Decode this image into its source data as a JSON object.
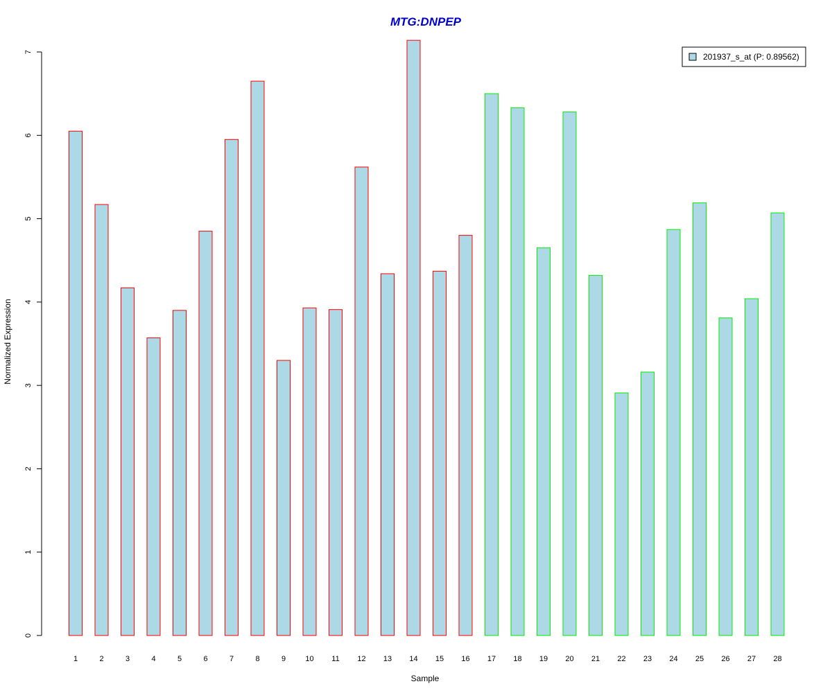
{
  "chart_data": {
    "type": "bar",
    "title": "MTG:DNPEP",
    "xlabel": "Sample",
    "ylabel": "Normalized Expression",
    "categories": [
      "1",
      "2",
      "3",
      "4",
      "5",
      "6",
      "7",
      "8",
      "9",
      "10",
      "11",
      "12",
      "13",
      "14",
      "15",
      "16",
      "17",
      "18",
      "19",
      "20",
      "21",
      "22",
      "23",
      "24",
      "25",
      "26",
      "27",
      "28"
    ],
    "series": [
      {
        "name": "201937_s_at (P: 0.89562)",
        "values": [
          6.05,
          5.17,
          4.17,
          3.57,
          3.9,
          4.85,
          5.95,
          6.65,
          3.3,
          3.93,
          3.91,
          5.62,
          4.34,
          7.14,
          4.37,
          4.8,
          6.5,
          6.33,
          4.65,
          6.28,
          4.32,
          2.91,
          3.16,
          4.87,
          5.19,
          3.81,
          4.04,
          5.07
        ]
      }
    ],
    "groups": [
      {
        "samples": "1-16",
        "border_color": "#ff0000"
      },
      {
        "samples": "17-28",
        "border_color": "#00ee00"
      }
    ],
    "ylim": [
      0,
      7
    ],
    "yticks": [
      "0",
      "1",
      "2",
      "3",
      "4",
      "5",
      "6",
      "7"
    ],
    "grid": false,
    "legend_position": "top-right",
    "colors": {
      "bar_fill": "#add8e6",
      "group1_border": "#ff0000",
      "group2_border": "#00ee00",
      "title": "#0000cd"
    }
  }
}
